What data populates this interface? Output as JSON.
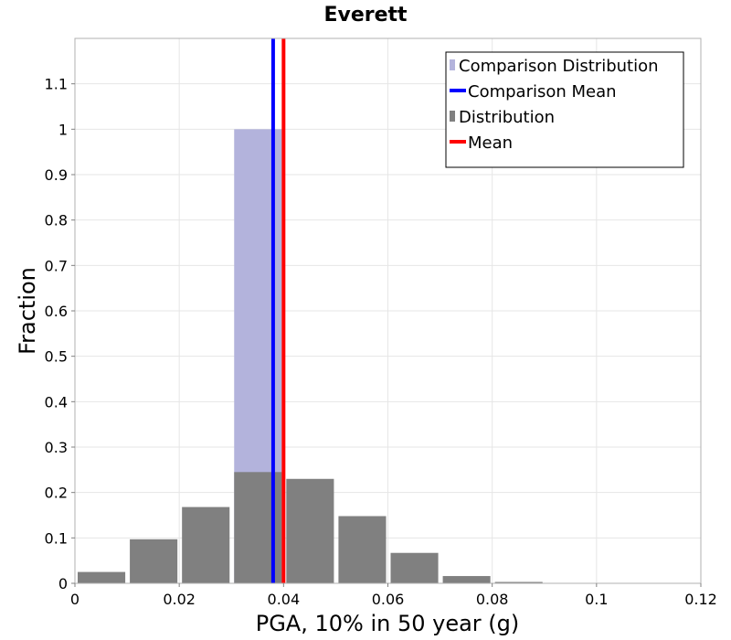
{
  "chart_data": {
    "type": "bar",
    "title": "Everett",
    "xlabel": "PGA, 10% in 50 year (g)",
    "ylabel": "Fraction",
    "xlim": [
      0,
      0.12
    ],
    "ylim": [
      0,
      1.2
    ],
    "xticks": [
      0,
      0.02,
      0.04,
      0.06,
      0.08,
      0.1,
      0.12
    ],
    "xtick_labels": [
      "0",
      "0.02",
      "0.04",
      "0.06",
      "0.08",
      "0.1",
      "0.12"
    ],
    "yticks": [
      0,
      0.1,
      0.2,
      0.3,
      0.4,
      0.5,
      0.6,
      0.7,
      0.8,
      0.9,
      1,
      1.1
    ],
    "ytick_labels": [
      "0",
      "0.1",
      "0.2",
      "0.3",
      "0.4",
      "0.5",
      "0.6",
      "0.7",
      "0.8",
      "0.9",
      "1",
      "1.1"
    ],
    "grid": true,
    "legend_position": "top-right",
    "legend": [
      {
        "label": "Comparison Distribution",
        "kind": "swatch",
        "color": "#b3b3dc"
      },
      {
        "label": "Comparison Mean",
        "kind": "line",
        "color": "#0000ff"
      },
      {
        "label": "Distribution",
        "kind": "swatch",
        "color": "#808080"
      },
      {
        "label": "Mean",
        "kind": "line",
        "color": "#ff0000"
      }
    ],
    "series": [
      {
        "name": "Comparison Distribution",
        "color": "#b3b3dc",
        "bins": [
          {
            "x0": 0.03,
            "x1": 0.04,
            "value": 1.0
          }
        ]
      },
      {
        "name": "Distribution",
        "color": "#808080",
        "bins": [
          {
            "x0": 0.0,
            "x1": 0.01,
            "value": 0.025
          },
          {
            "x0": 0.01,
            "x1": 0.02,
            "value": 0.097
          },
          {
            "x0": 0.02,
            "x1": 0.03,
            "value": 0.168
          },
          {
            "x0": 0.03,
            "x1": 0.04,
            "value": 0.245
          },
          {
            "x0": 0.04,
            "x1": 0.05,
            "value": 0.23
          },
          {
            "x0": 0.05,
            "x1": 0.06,
            "value": 0.148
          },
          {
            "x0": 0.06,
            "x1": 0.07,
            "value": 0.067
          },
          {
            "x0": 0.07,
            "x1": 0.08,
            "value": 0.016
          },
          {
            "x0": 0.08,
            "x1": 0.09,
            "value": 0.003
          },
          {
            "x0": 0.09,
            "x1": 0.1,
            "value": 0.001
          },
          {
            "x0": 0.1,
            "x1": 0.11,
            "value": 0.0005
          }
        ]
      }
    ],
    "vlines": [
      {
        "name": "Comparison Mean",
        "x": 0.038,
        "color": "#0000ff"
      },
      {
        "name": "Mean",
        "x": 0.04,
        "color": "#ff0000"
      }
    ]
  }
}
